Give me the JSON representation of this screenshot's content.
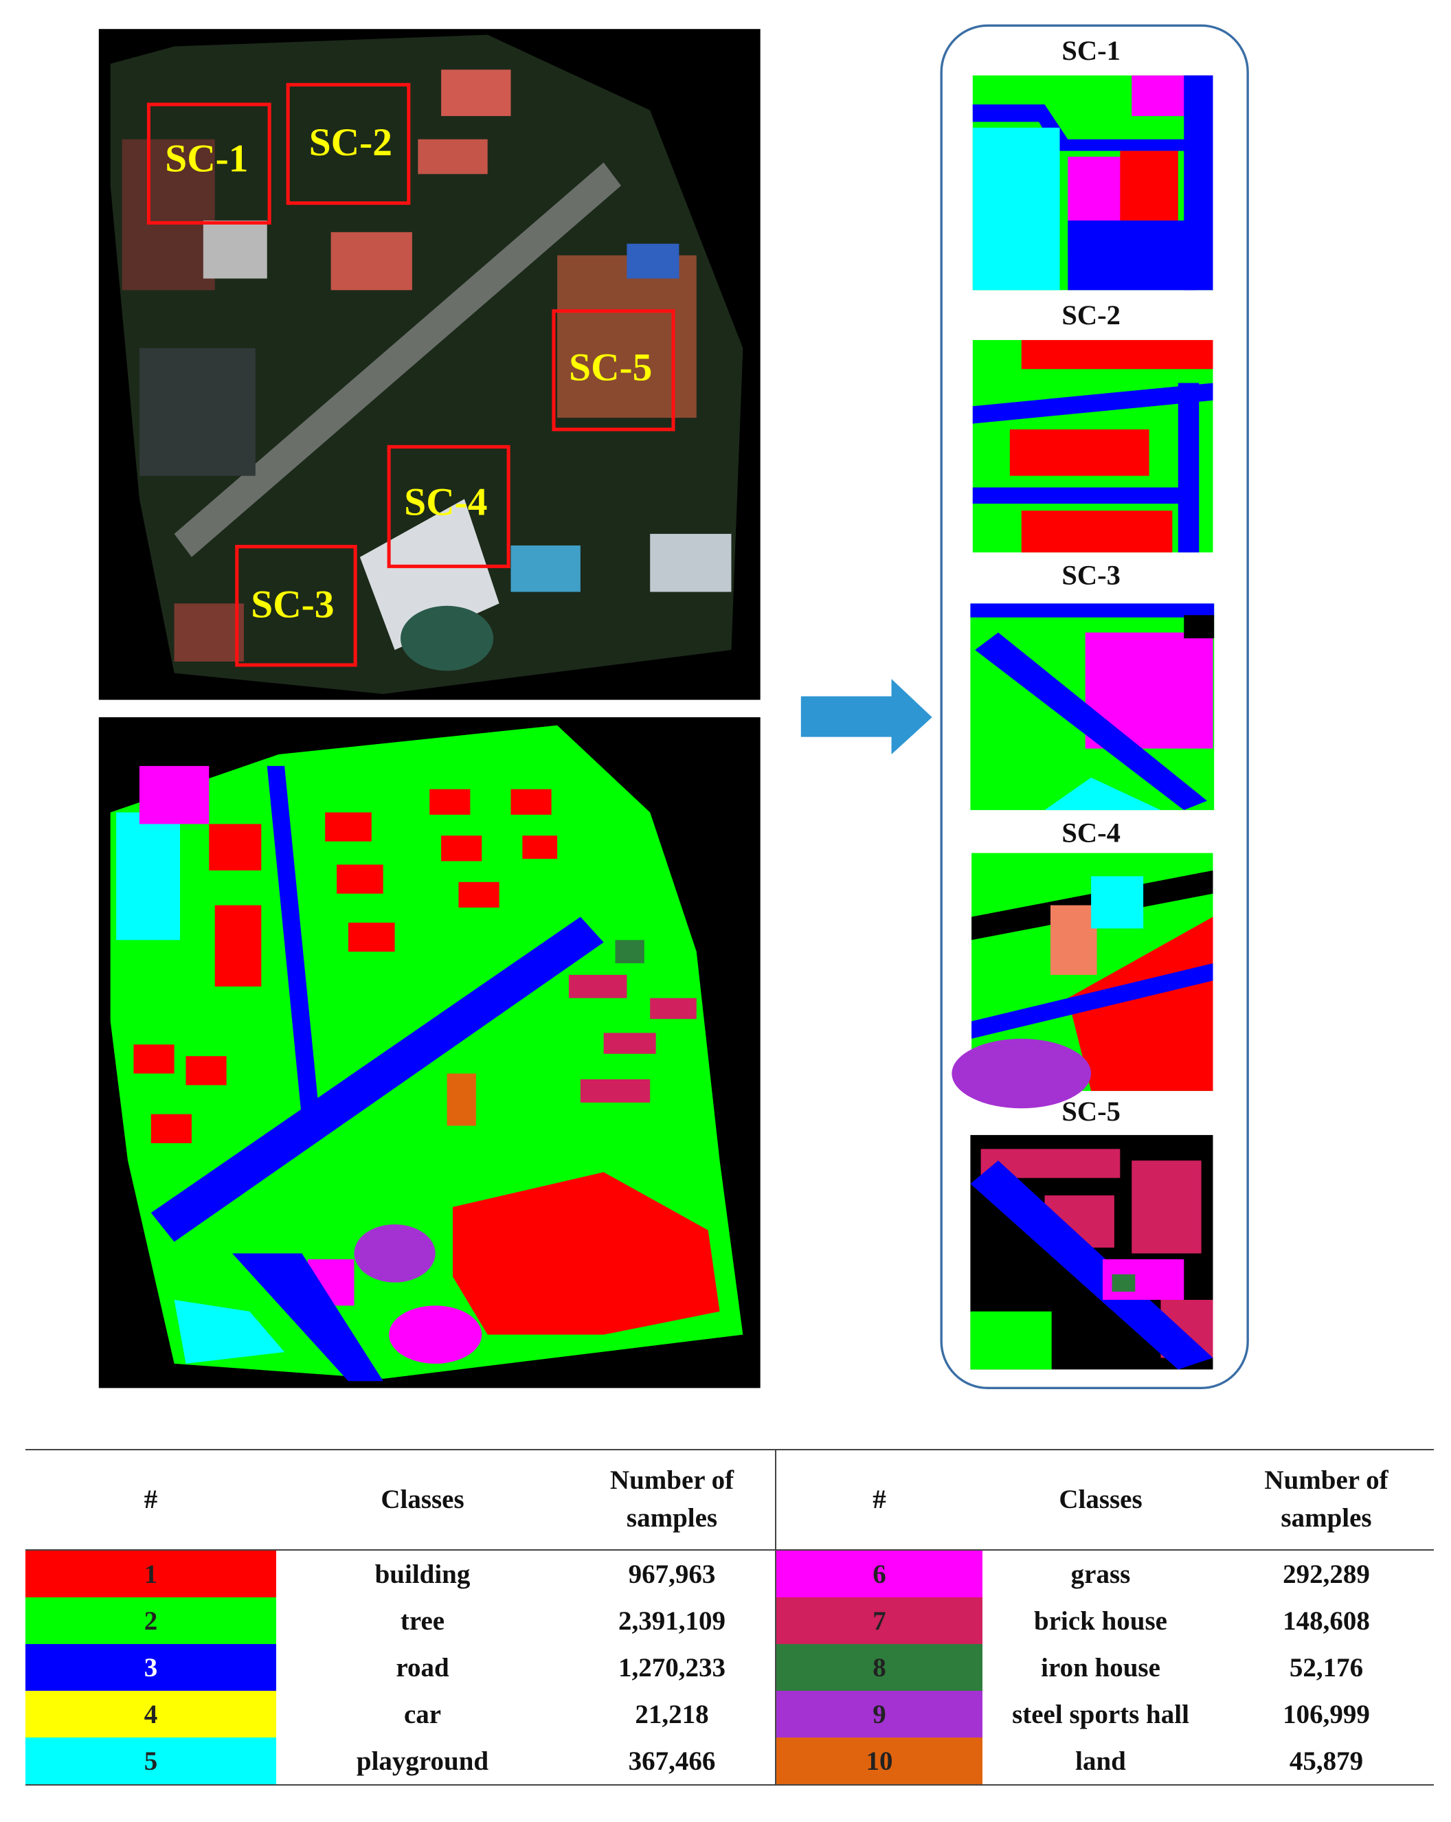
{
  "satellite_image": {
    "boxes": [
      "SC-1",
      "SC-2",
      "SC-3",
      "SC-4",
      "SC-5"
    ]
  },
  "panels": [
    {
      "title": "SC-1"
    },
    {
      "title": "SC-2"
    },
    {
      "title": "SC-3"
    },
    {
      "title": "SC-4"
    },
    {
      "title": "SC-5"
    }
  ],
  "table": {
    "headers": [
      "#",
      "Classes",
      "Number of samples",
      "#",
      "Classes",
      "Number of samples"
    ],
    "rows": [
      [
        "1",
        "building",
        "967,963",
        "6",
        "grass",
        "292,289"
      ],
      [
        "2",
        "tree",
        "2,391,109",
        "7",
        "brick house",
        "148,608"
      ],
      [
        "3",
        "road",
        "1,270,233",
        "8",
        "iron house",
        "52,176"
      ],
      [
        "4",
        "car",
        "21,218",
        "9",
        "steel sports hall",
        "106,999"
      ],
      [
        "5",
        "playground",
        "367,466",
        "10",
        "land",
        "45,879"
      ]
    ],
    "row_colors": [
      [
        "#ff0000",
        "#ff00ff"
      ],
      [
        "#00ff00",
        "#d0205e"
      ],
      [
        "#0000ff",
        "#2e7d3c"
      ],
      [
        "#ffff00",
        "#a432d2"
      ],
      [
        "#00ffff",
        "#e0640e"
      ]
    ]
  }
}
